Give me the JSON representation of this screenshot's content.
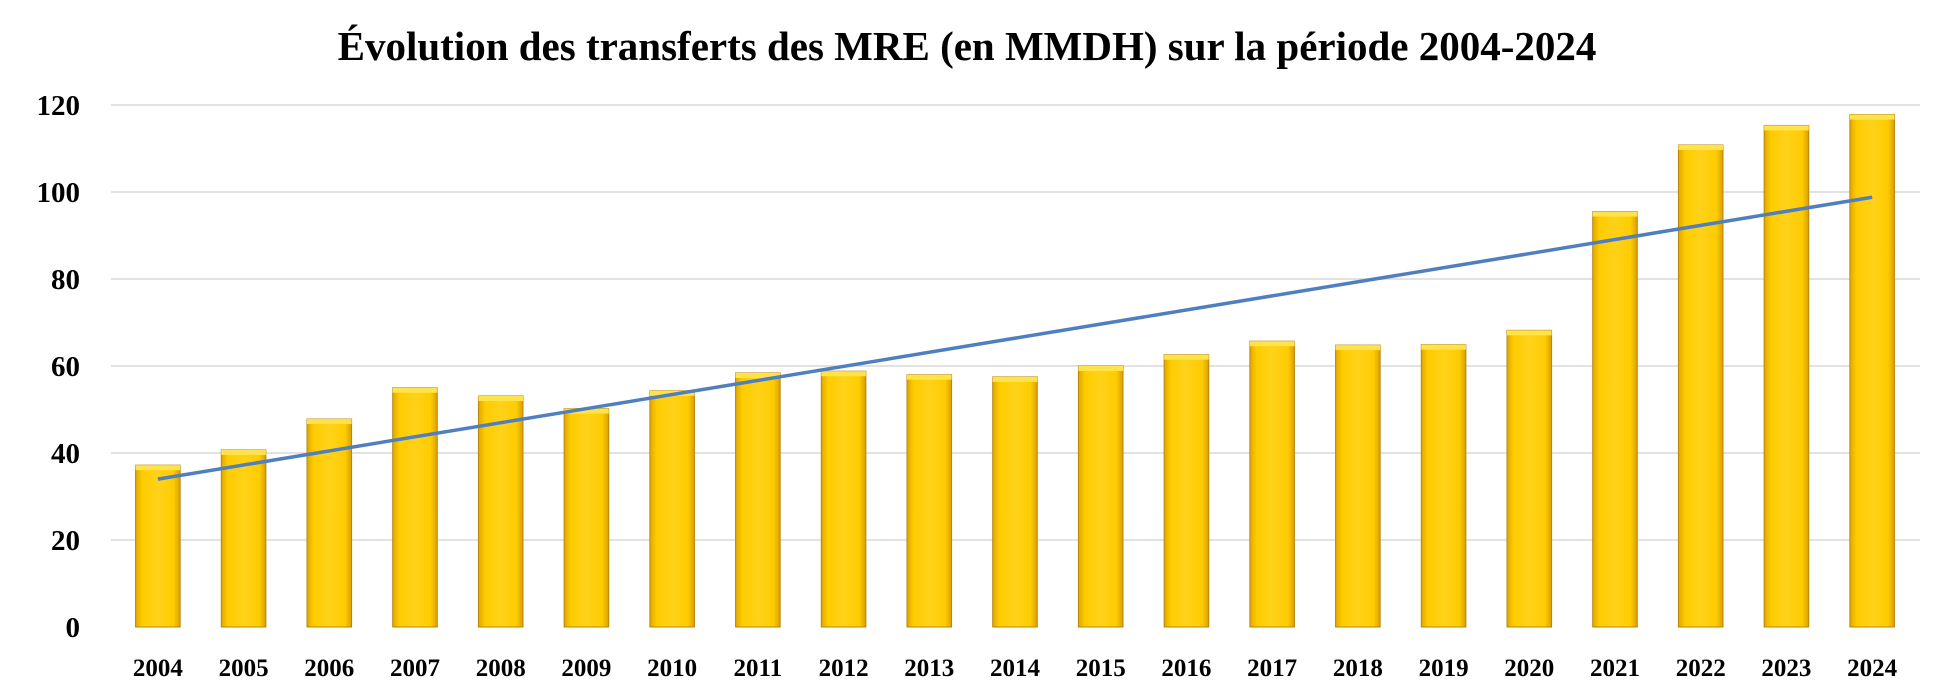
{
  "chart_data": {
    "type": "bar",
    "title": "Évolution des transferts des MRE (en MMDH) sur la période 2004-2024",
    "xlabel": "",
    "ylabel": "",
    "categories": [
      "2004",
      "2005",
      "2006",
      "2007",
      "2008",
      "2009",
      "2010",
      "2011",
      "2012",
      "2013",
      "2014",
      "2015",
      "2016",
      "2017",
      "2018",
      "2019",
      "2020",
      "2021",
      "2022",
      "2023",
      "2024"
    ],
    "values": [
      37.2,
      40.7,
      47.8,
      55.0,
      53.1,
      50.2,
      54.3,
      58.4,
      58.8,
      58.0,
      57.5,
      60.0,
      62.6,
      65.7,
      64.8,
      64.9,
      68.2,
      95.5,
      110.8,
      115.3,
      117.8
    ],
    "trendline": {
      "type": "linear",
      "start": 34.0,
      "end": 98.8,
      "color": "#4f7fbf"
    },
    "ylim": [
      0,
      120
    ],
    "yticks": [
      0,
      20,
      40,
      60,
      80,
      100,
      120
    ],
    "grid": true,
    "legend": "none",
    "bar_color": "#ffc800",
    "bar_edge_color": "#b8860b"
  }
}
